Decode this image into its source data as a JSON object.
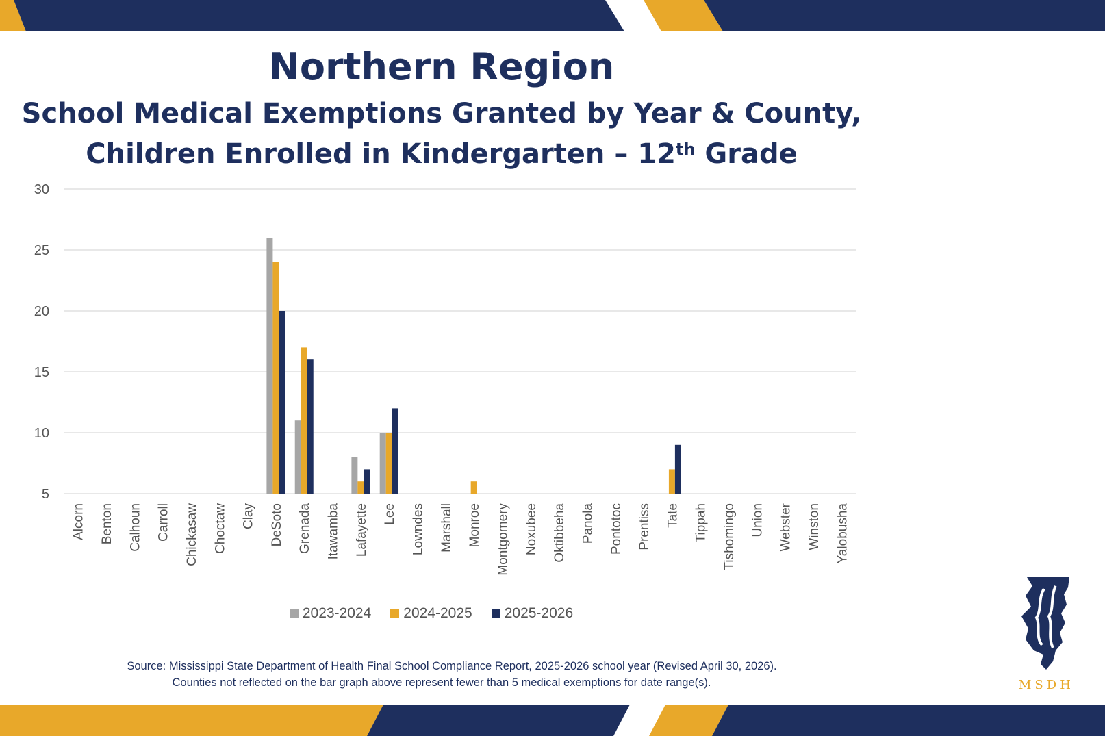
{
  "header": {
    "title": "Northern Region",
    "subtitle_line1": "School Medical Exemptions Granted by Year & County,",
    "subtitle_line2_pre": "Children Enrolled in Kindergarten – 12",
    "subtitle_line2_sup": "th",
    "subtitle_line2_post": " Grade"
  },
  "colors": {
    "navy": "#1e2f5e",
    "gold": "#e8a82a",
    "gray": "#a6a6a6",
    "grid": "#d9d9d9"
  },
  "chart_data": {
    "type": "bar",
    "categories": [
      "Alcorn",
      "Benton",
      "Calhoun",
      "Carroll",
      "Chickasaw",
      "Choctaw",
      "Clay",
      "DeSoto",
      "Grenada",
      "Itawamba",
      "Lafayette",
      "Lee",
      "Lowndes",
      "Marshall",
      "Monroe",
      "Montgomery",
      "Noxubee",
      "Oktibbeha",
      "Panola",
      "Pontotoc",
      "Prentiss",
      "Tate",
      "Tippah",
      "Tishomingo",
      "Union",
      "Webster",
      "Winston",
      "Yalobusha"
    ],
    "series": [
      {
        "name": "2023-2024",
        "color": "#a6a6a6",
        "values": [
          null,
          null,
          null,
          null,
          null,
          null,
          null,
          26,
          11,
          null,
          8,
          10,
          null,
          null,
          null,
          null,
          null,
          null,
          null,
          null,
          null,
          null,
          null,
          null,
          null,
          null,
          null,
          null
        ]
      },
      {
        "name": "2024-2025",
        "color": "#e8a82a",
        "values": [
          null,
          null,
          null,
          null,
          null,
          null,
          null,
          24,
          17,
          null,
          6,
          10,
          null,
          null,
          6,
          null,
          null,
          null,
          null,
          null,
          null,
          7,
          null,
          null,
          null,
          null,
          null,
          null
        ]
      },
      {
        "name": "2025-2026",
        "color": "#1e2f5e",
        "values": [
          null,
          null,
          null,
          null,
          null,
          null,
          null,
          20,
          16,
          null,
          7,
          12,
          null,
          null,
          null,
          null,
          null,
          null,
          null,
          null,
          null,
          9,
          null,
          null,
          null,
          null,
          null,
          null
        ]
      }
    ],
    "ylim": [
      5,
      30
    ],
    "yticks": [
      5,
      10,
      15,
      20,
      25,
      30
    ],
    "grid": true,
    "legend": "bottom",
    "xlabel": "",
    "ylabel": ""
  },
  "footer": {
    "source_line1": "Source: Mississippi State Department of Health Final School Compliance Report, 2025-2026 school year (Revised April 30, 2026).",
    "source_line2": "Counties not reflected on the bar graph above represent fewer than 5 medical exemptions for date range(s).",
    "logo_text": "MSDH"
  }
}
